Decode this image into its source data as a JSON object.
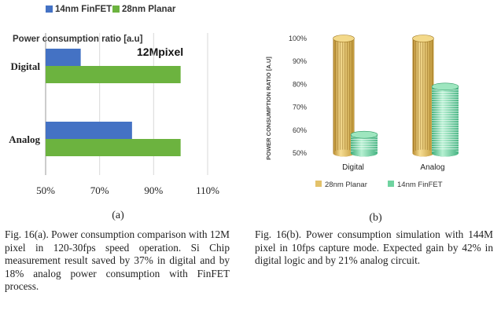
{
  "chart_data": [
    {
      "type": "bar",
      "orientation": "horizontal",
      "title": "Power consumption ratio [a.u]",
      "annotation": "12Mpixel",
      "categories": [
        "Digital",
        "Analog"
      ],
      "series": [
        {
          "name": "14nm FinFET",
          "color": "#4472c4",
          "values": [
            63,
            82
          ]
        },
        {
          "name": "28nm Planar",
          "color": "#6cb33f",
          "values": [
            100,
            100
          ]
        }
      ],
      "xlim": [
        50,
        110
      ],
      "xticks": [
        "50%",
        "70%",
        "90%",
        "110%"
      ],
      "xtick_values": [
        50,
        70,
        90,
        110
      ],
      "grid": true,
      "legend": "top"
    },
    {
      "type": "bar",
      "orientation": "vertical",
      "style": "3d-cylinder",
      "ylabel": "POWER CONSUMPTION RATIO [A.U]",
      "categories": [
        "Digital",
        "Analog"
      ],
      "series": [
        {
          "name": "28nm Planar",
          "color": "#e3c26a",
          "values": [
            100,
            100
          ]
        },
        {
          "name": "14nm FinFET",
          "color": "#6fd3a0",
          "values": [
            58,
            79
          ]
        }
      ],
      "ylim": [
        50,
        100
      ],
      "yticks": [
        "100%",
        "90%",
        "80%",
        "70%",
        "60%",
        "50%"
      ],
      "ytick_values": [
        100,
        90,
        80,
        70,
        60,
        50
      ],
      "legend": "bottom"
    }
  ],
  "captions": {
    "a_label": "(a)",
    "b_label": "(b)",
    "a": "Fig. 16(a). Power consumption comparison with 12M pixel in 120-30fps speed operation. Si Chip measurement result saved by 37% in digital and by 18% analog power consumption with FinFET process.",
    "b": "Fig. 16(b). Power consumption simulation with 144M pixel in 10fps capture mode. Expected gain by 42% in digital logic and by 21% analog circuit."
  }
}
